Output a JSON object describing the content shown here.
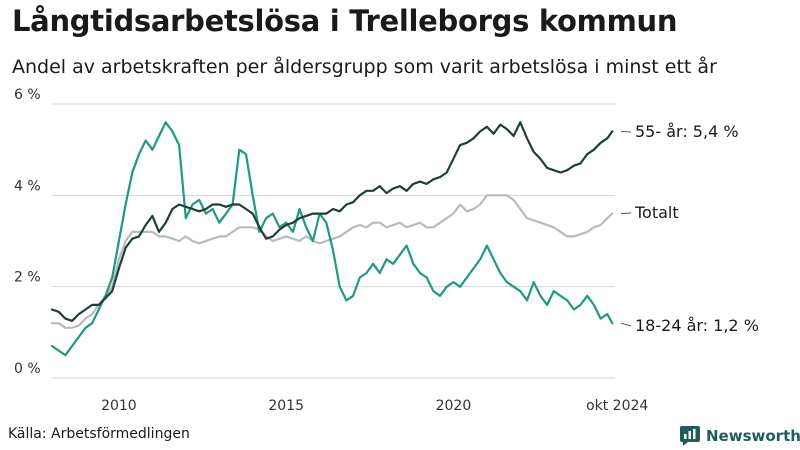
{
  "header": {
    "title": "Långtidsarbetslösa i Trelleborgs kommun",
    "subtitle": "Andel av arbetskraften per åldersgrupp som varit arbetslösa i minst ett år"
  },
  "footer": {
    "source": "Källa: Arbetsförmedlingen",
    "brand": "Newsworthy"
  },
  "colors": {
    "series_55": "#1f3f35",
    "series_total": "#b9b9c3",
    "series_18_24": "#1c9a84",
    "grid": "#d6d6d6",
    "brand": "#1f5c5c"
  },
  "chart_data": {
    "type": "line",
    "title": "Långtidsarbetslösa i Trelleborgs kommun",
    "subtitle": "Andel av arbetskraften per åldersgrupp som varit arbetslösa i minst ett år",
    "xlim": [
      2008.0,
      2024.83
    ],
    "ylim": [
      0,
      6
    ],
    "x_ticks": [
      {
        "value": 2010,
        "label": "2010"
      },
      {
        "value": 2015,
        "label": "2015"
      },
      {
        "value": 2020,
        "label": "2020"
      },
      {
        "value": 2024.75,
        "label": "okt 2024"
      }
    ],
    "y_ticks": [
      {
        "value": 0,
        "label": "0 %"
      },
      {
        "value": 2,
        "label": "2 %"
      },
      {
        "value": 4,
        "label": "4 %"
      },
      {
        "value": 6,
        "label": "6 %"
      }
    ],
    "grid": true,
    "series": [
      {
        "name": "55- år",
        "end_label": "55- år: 5,4 %",
        "color": "#1f3f35",
        "x": [
          2008.0,
          2008.2,
          2008.4,
          2008.6,
          2008.8,
          2009.0,
          2009.2,
          2009.4,
          2009.6,
          2009.8,
          2010.0,
          2010.2,
          2010.4,
          2010.6,
          2010.8,
          2011.0,
          2011.2,
          2011.4,
          2011.6,
          2011.8,
          2012.0,
          2012.2,
          2012.4,
          2012.6,
          2012.8,
          2013.0,
          2013.2,
          2013.4,
          2013.6,
          2013.8,
          2014.0,
          2014.2,
          2014.4,
          2014.6,
          2014.8,
          2015.0,
          2015.2,
          2015.4,
          2015.6,
          2015.8,
          2016.0,
          2016.2,
          2016.4,
          2016.6,
          2016.8,
          2017.0,
          2017.2,
          2017.4,
          2017.6,
          2017.8,
          2018.0,
          2018.2,
          2018.4,
          2018.6,
          2018.8,
          2019.0,
          2019.2,
          2019.4,
          2019.6,
          2019.8,
          2020.0,
          2020.2,
          2020.4,
          2020.6,
          2020.8,
          2021.0,
          2021.2,
          2021.4,
          2021.6,
          2021.8,
          2022.0,
          2022.2,
          2022.4,
          2022.6,
          2022.8,
          2023.0,
          2023.2,
          2023.4,
          2023.6,
          2023.8,
          2024.0,
          2024.2,
          2024.4,
          2024.6,
          2024.75
        ],
        "values": [
          1.5,
          1.45,
          1.3,
          1.25,
          1.4,
          1.5,
          1.6,
          1.6,
          1.75,
          1.9,
          2.4,
          2.85,
          3.05,
          3.1,
          3.35,
          3.55,
          3.2,
          3.4,
          3.7,
          3.8,
          3.75,
          3.7,
          3.65,
          3.7,
          3.8,
          3.8,
          3.75,
          3.8,
          3.8,
          3.7,
          3.6,
          3.3,
          3.05,
          3.1,
          3.25,
          3.35,
          3.4,
          3.5,
          3.55,
          3.6,
          3.6,
          3.6,
          3.7,
          3.65,
          3.8,
          3.85,
          4.0,
          4.1,
          4.1,
          4.2,
          4.05,
          4.15,
          4.2,
          4.1,
          4.25,
          4.3,
          4.25,
          4.35,
          4.4,
          4.5,
          4.8,
          5.1,
          5.15,
          5.25,
          5.4,
          5.5,
          5.35,
          5.55,
          5.45,
          5.3,
          5.6,
          5.25,
          4.95,
          4.8,
          4.6,
          4.55,
          4.5,
          4.55,
          4.65,
          4.7,
          4.9,
          5.0,
          5.15,
          5.25,
          5.4
        ]
      },
      {
        "name": "Totalt",
        "end_label": "Totalt",
        "color": "#b9b9c3",
        "x": [
          2008.0,
          2008.2,
          2008.4,
          2008.6,
          2008.8,
          2009.0,
          2009.2,
          2009.4,
          2009.6,
          2009.8,
          2010.0,
          2010.2,
          2010.4,
          2010.6,
          2010.8,
          2011.0,
          2011.2,
          2011.4,
          2011.6,
          2011.8,
          2012.0,
          2012.2,
          2012.4,
          2012.6,
          2012.8,
          2013.0,
          2013.2,
          2013.4,
          2013.6,
          2013.8,
          2014.0,
          2014.2,
          2014.4,
          2014.6,
          2014.8,
          2015.0,
          2015.2,
          2015.4,
          2015.6,
          2015.8,
          2016.0,
          2016.2,
          2016.4,
          2016.6,
          2016.8,
          2017.0,
          2017.2,
          2017.4,
          2017.6,
          2017.8,
          2018.0,
          2018.2,
          2018.4,
          2018.6,
          2018.8,
          2019.0,
          2019.2,
          2019.4,
          2019.6,
          2019.8,
          2020.0,
          2020.2,
          2020.4,
          2020.6,
          2020.8,
          2021.0,
          2021.2,
          2021.4,
          2021.6,
          2021.8,
          2022.0,
          2022.2,
          2022.4,
          2022.6,
          2022.8,
          2023.0,
          2023.2,
          2023.4,
          2023.6,
          2023.8,
          2024.0,
          2024.2,
          2024.4,
          2024.6,
          2024.75
        ],
        "values": [
          1.2,
          1.2,
          1.1,
          1.1,
          1.15,
          1.3,
          1.4,
          1.6,
          1.8,
          2.0,
          2.6,
          3.0,
          3.2,
          3.2,
          3.2,
          3.2,
          3.1,
          3.1,
          3.05,
          3.0,
          3.1,
          3.0,
          2.95,
          3.0,
          3.05,
          3.1,
          3.1,
          3.2,
          3.3,
          3.3,
          3.3,
          3.25,
          3.1,
          3.0,
          3.05,
          3.1,
          3.05,
          3.0,
          3.1,
          3.0,
          2.95,
          3.0,
          3.05,
          3.1,
          3.2,
          3.3,
          3.35,
          3.3,
          3.4,
          3.4,
          3.3,
          3.35,
          3.4,
          3.3,
          3.35,
          3.4,
          3.3,
          3.3,
          3.4,
          3.5,
          3.6,
          3.8,
          3.65,
          3.7,
          3.8,
          4.0,
          4.0,
          4.0,
          4.0,
          3.9,
          3.7,
          3.5,
          3.45,
          3.4,
          3.35,
          3.3,
          3.2,
          3.1,
          3.1,
          3.15,
          3.2,
          3.3,
          3.35,
          3.5,
          3.6
        ]
      },
      {
        "name": "18-24 år",
        "end_label": "18-24 år: 1,2 %",
        "color": "#1c9a84",
        "x": [
          2008.0,
          2008.2,
          2008.4,
          2008.6,
          2008.8,
          2009.0,
          2009.2,
          2009.4,
          2009.6,
          2009.8,
          2010.0,
          2010.2,
          2010.4,
          2010.6,
          2010.8,
          2011.0,
          2011.2,
          2011.4,
          2011.6,
          2011.8,
          2012.0,
          2012.2,
          2012.4,
          2012.6,
          2012.8,
          2013.0,
          2013.2,
          2013.4,
          2013.6,
          2013.8,
          2014.0,
          2014.2,
          2014.4,
          2014.6,
          2014.8,
          2015.0,
          2015.2,
          2015.4,
          2015.6,
          2015.8,
          2016.0,
          2016.2,
          2016.4,
          2016.6,
          2016.8,
          2017.0,
          2017.2,
          2017.4,
          2017.6,
          2017.8,
          2018.0,
          2018.2,
          2018.4,
          2018.6,
          2018.8,
          2019.0,
          2019.2,
          2019.4,
          2019.6,
          2019.8,
          2020.0,
          2020.2,
          2020.4,
          2020.6,
          2020.8,
          2021.0,
          2021.2,
          2021.4,
          2021.6,
          2021.8,
          2022.0,
          2022.2,
          2022.4,
          2022.6,
          2022.8,
          2023.0,
          2023.2,
          2023.4,
          2023.6,
          2023.8,
          2024.0,
          2024.2,
          2024.4,
          2024.6,
          2024.75
        ],
        "values": [
          0.7,
          0.6,
          0.5,
          0.7,
          0.9,
          1.1,
          1.2,
          1.5,
          1.8,
          2.2,
          3.0,
          3.8,
          4.5,
          4.9,
          5.2,
          5.0,
          5.3,
          5.6,
          5.4,
          5.1,
          3.5,
          3.8,
          3.9,
          3.6,
          3.7,
          3.4,
          3.6,
          3.8,
          5.0,
          4.9,
          4.0,
          3.2,
          3.5,
          3.6,
          3.3,
          3.4,
          3.2,
          3.7,
          3.3,
          3.0,
          3.6,
          3.4,
          2.8,
          2.0,
          1.7,
          1.8,
          2.2,
          2.3,
          2.5,
          2.3,
          2.6,
          2.5,
          2.7,
          2.9,
          2.5,
          2.3,
          2.2,
          1.9,
          1.8,
          2.0,
          2.1,
          2.0,
          2.2,
          2.4,
          2.6,
          2.9,
          2.6,
          2.3,
          2.1,
          2.0,
          1.9,
          1.7,
          2.1,
          1.8,
          1.6,
          1.9,
          1.8,
          1.7,
          1.5,
          1.6,
          1.8,
          1.6,
          1.3,
          1.4,
          1.2
        ]
      }
    ]
  }
}
